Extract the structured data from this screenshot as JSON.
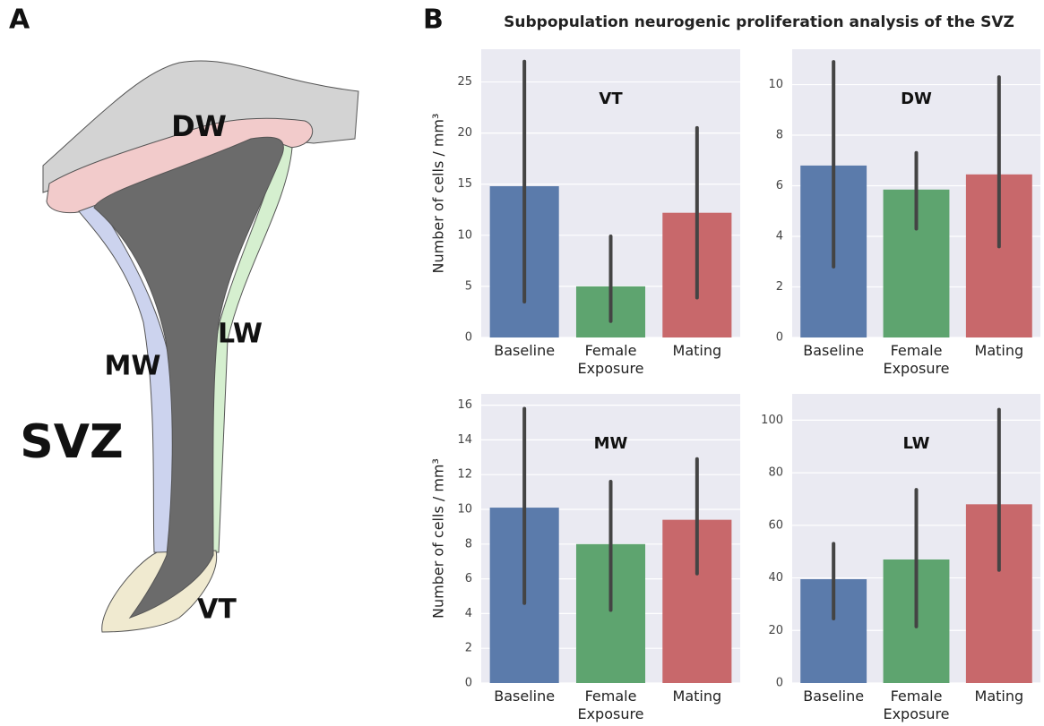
{
  "panel_labels": [
    "A",
    "B"
  ],
  "diagram": {
    "labels": [
      "DW",
      "LW",
      "MW",
      "SVZ",
      "VT"
    ]
  },
  "title": "Subpopulation neurogenic proliferation analysis of the SVZ",
  "chart_data": [
    {
      "type": "bar",
      "title": "VT",
      "ylabel": "Number of cells / mm³",
      "categories": [
        "Baseline",
        "Female Exposure",
        "Mating"
      ],
      "values": [
        14.8,
        5.0,
        12.2
      ],
      "ci": [
        [
          3.5,
          27.0
        ],
        [
          1.6,
          9.9
        ],
        [
          3.9,
          20.5
        ]
      ],
      "colors": [
        "#5b7bab",
        "#5ea46f",
        "#c8686b"
      ],
      "ylim": [
        0,
        28.2
      ],
      "yticks": [
        0,
        5,
        10,
        15,
        20,
        25
      ],
      "grid": true
    },
    {
      "type": "bar",
      "title": "DW",
      "categories": [
        "Baseline",
        "Female Exposure",
        "Mating"
      ],
      "values": [
        6.8,
        5.85,
        6.45
      ],
      "ci": [
        [
          2.8,
          10.9
        ],
        [
          4.3,
          7.3
        ],
        [
          3.6,
          10.3
        ]
      ],
      "colors": [
        "#5b7bab",
        "#5ea46f",
        "#c8686b"
      ],
      "ylim": [
        0,
        11.4
      ],
      "yticks": [
        0,
        2,
        4,
        6,
        8,
        10
      ],
      "grid": true
    },
    {
      "type": "bar",
      "title": "MW",
      "ylabel": "Number of cells / mm³",
      "categories": [
        "Baseline",
        "Female Exposure",
        "Mating"
      ],
      "values": [
        10.1,
        8.0,
        9.4
      ],
      "ci": [
        [
          4.6,
          15.8
        ],
        [
          4.2,
          11.6
        ],
        [
          6.3,
          12.9
        ]
      ],
      "colors": [
        "#5b7bab",
        "#5ea46f",
        "#c8686b"
      ],
      "ylim": [
        0,
        16.65
      ],
      "yticks": [
        0,
        2,
        4,
        6,
        8,
        10,
        12,
        14,
        16
      ],
      "grid": true
    },
    {
      "type": "bar",
      "title": "LW",
      "categories": [
        "Baseline",
        "Female Exposure",
        "Mating"
      ],
      "values": [
        39.5,
        47,
        68
      ],
      "ci": [
        [
          24.5,
          53
        ],
        [
          21.5,
          73.5
        ],
        [
          43,
          104
        ]
      ],
      "colors": [
        "#5b7bab",
        "#5ea46f",
        "#c8686b"
      ],
      "ylim": [
        0,
        110
      ],
      "yticks": [
        0,
        20,
        40,
        60,
        80,
        100
      ],
      "grid": true
    }
  ]
}
